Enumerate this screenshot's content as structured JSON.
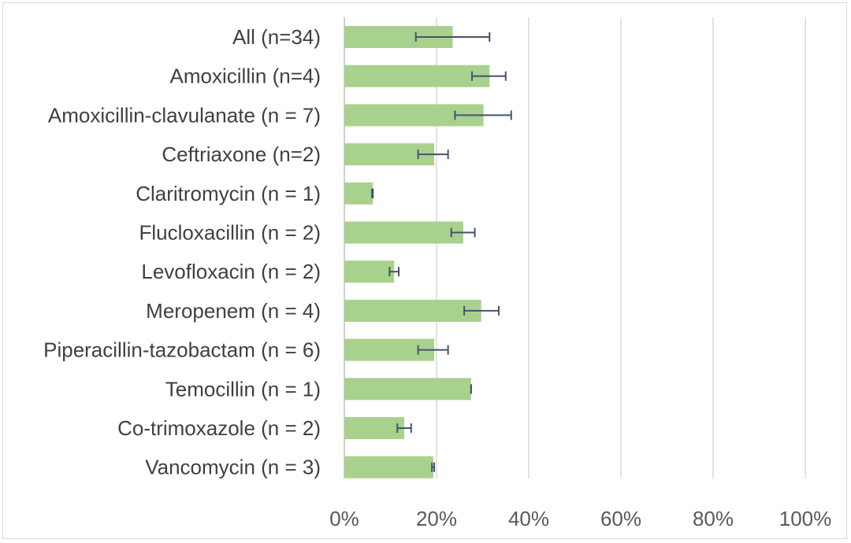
{
  "chart_data": {
    "type": "bar",
    "orientation": "horizontal",
    "title": "",
    "xlabel": "",
    "ylabel": "",
    "xlim": [
      0,
      1
    ],
    "grid": true,
    "legend": "none",
    "bar_color": "#a9d18e",
    "error_bar_color": "#44546a",
    "x_ticks": [
      0,
      0.2,
      0.4,
      0.6,
      0.8,
      1.0
    ],
    "x_tick_labels": [
      "0%",
      "20%",
      "40%",
      "60%",
      "80%",
      "100%"
    ],
    "categories": [
      "All (n=34)",
      "Amoxicillin (n=4)",
      "Amoxicillin-clavulanate (n = 7)",
      "Ceftriaxone (n=2)",
      "Claritromycin (n = 1)",
      "Flucloxacillin (n = 2)",
      "Levofloxacin (n = 2)",
      "Meropenem (n = 4)",
      "Piperacillin-tazobactam (n = 6)",
      "Temocillin (n = 1)",
      "Co-trimoxazole (n = 2)",
      "Vancomycin (n = 3)"
    ],
    "series": [
      {
        "values": [
          0.235,
          0.315,
          0.302,
          0.195,
          0.062,
          0.258,
          0.108,
          0.297,
          0.195,
          0.275,
          0.13,
          0.193
        ],
        "error_low": [
          0.155,
          0.277,
          0.24,
          0.16,
          0.06,
          0.232,
          0.098,
          0.26,
          0.16,
          0.275,
          0.115,
          0.19
        ],
        "error_high": [
          0.315,
          0.35,
          0.362,
          0.225,
          0.062,
          0.283,
          0.118,
          0.335,
          0.225,
          0.275,
          0.145,
          0.195
        ]
      }
    ]
  }
}
